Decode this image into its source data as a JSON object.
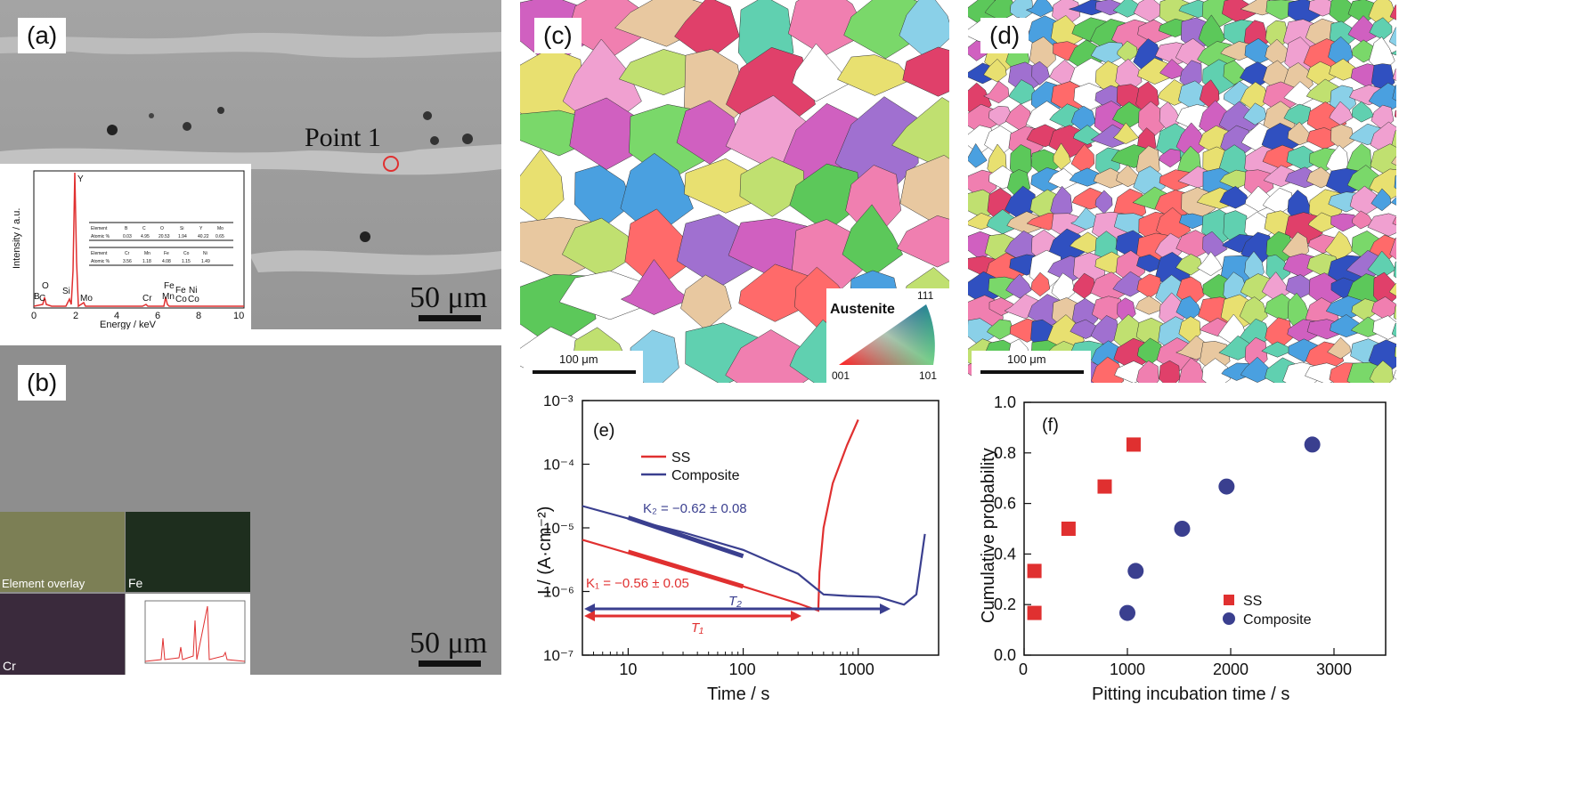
{
  "panel_a": {
    "label": "(a)",
    "point_label": "Point 1",
    "scale": "50 μm",
    "inset": {
      "ylabel": "Intensity / a.u.",
      "xlabel": "Energy / keV",
      "xticks": [
        "0",
        "2",
        "4",
        "6",
        "8",
        "10"
      ],
      "peaks": [
        "Y",
        "O",
        "B",
        "C",
        "Si",
        "Mo",
        "Cr",
        "Fe",
        "Mn",
        "Fe",
        "Ni",
        "Co",
        "Co"
      ],
      "table1_header": [
        "Element",
        "B",
        "C",
        "O",
        "Si",
        "Y",
        "Mo"
      ],
      "table1_row": [
        "Atomic %",
        "0.03",
        "4.95",
        "20.53",
        "1.94",
        "40.22",
        "0.65"
      ],
      "table2_header": [
        "Element",
        "Cr",
        "Mn",
        "Fe",
        "Co",
        "Ni"
      ],
      "table2_row": [
        "Atomic %",
        "3.56",
        "1.18",
        "4.08",
        "1.15",
        "1.49"
      ]
    }
  },
  "panel_b": {
    "label": "(b)",
    "scale": "50 μm",
    "maps": [
      "Element overlay",
      "Fe",
      "Cr"
    ]
  },
  "panel_c": {
    "label": "(c)",
    "scale": "100 μm",
    "legend_title": "Austenite",
    "legend_corners": [
      "111",
      "001",
      "101"
    ]
  },
  "panel_d": {
    "label": "(d)",
    "scale": "100 μm"
  },
  "chart_data": [
    {
      "id": "e",
      "type": "line",
      "label": "(e)",
      "xlabel": "Time / s",
      "ylabel": "I / (A·cm⁻²)",
      "xscale": "log",
      "yscale": "log",
      "xlim": [
        4,
        5000
      ],
      "ylim": [
        1e-07,
        0.001
      ],
      "xticks": [
        "10",
        "100",
        "1000"
      ],
      "yticks": [
        "10⁻⁷",
        "10⁻⁶",
        "10⁻⁵",
        "10⁻⁴",
        "10⁻³"
      ],
      "legend": [
        "SS",
        "Composite"
      ],
      "colors": {
        "SS": "#e03030",
        "Composite": "#3a3f8f"
      },
      "series": [
        {
          "name": "SS",
          "x": [
            4,
            10,
            30,
            100,
            300,
            450,
            460,
            500,
            600,
            800,
            1000
          ],
          "y": [
            6.5e-06,
            4e-06,
            2.2e-06,
            1.2e-06,
            6.5e-07,
            5e-07,
            2e-06,
            1e-05,
            5e-05,
            0.0002,
            0.0005
          ]
        },
        {
          "name": "Composite",
          "x": [
            4,
            10,
            30,
            100,
            300,
            500,
            800,
            1500,
            2500,
            3200,
            3800
          ],
          "y": [
            2.2e-05,
            1.4e-05,
            8.5e-06,
            4.5e-06,
            1.9e-06,
            9e-07,
            8.5e-07,
            8.2e-07,
            6.2e-07,
            9e-07,
            8e-06
          ]
        }
      ],
      "annotations": {
        "K1": "K₁ = −0.56 ± 0.05",
        "K2": "K₂ = −0.62 ± 0.08",
        "T1": "T₁",
        "T2": "T₂"
      }
    },
    {
      "id": "f",
      "type": "scatter",
      "label": "(f)",
      "xlabel": "Pitting incubation time / s",
      "ylabel": "Cumulative probability",
      "xlim": [
        0,
        3500
      ],
      "ylim": [
        0,
        1.0
      ],
      "xticks": [
        "0",
        "1000",
        "2000",
        "3000"
      ],
      "yticks": [
        "0.0",
        "0.2",
        "0.4",
        "0.6",
        "0.8",
        "1.0"
      ],
      "legend": [
        "SS",
        "Composite"
      ],
      "colors": {
        "SS": "#e03030",
        "Composite": "#3a3f8f"
      },
      "series": [
        {
          "name": "SS",
          "x": [
            100,
            100,
            430,
            780,
            1060
          ],
          "y": [
            0.167,
            0.333,
            0.5,
            0.667,
            0.833
          ]
        },
        {
          "name": "Composite",
          "x": [
            1000,
            1080,
            1530,
            1960,
            2790
          ],
          "y": [
            0.167,
            0.333,
            0.5,
            0.667,
            0.833
          ]
        }
      ]
    }
  ]
}
